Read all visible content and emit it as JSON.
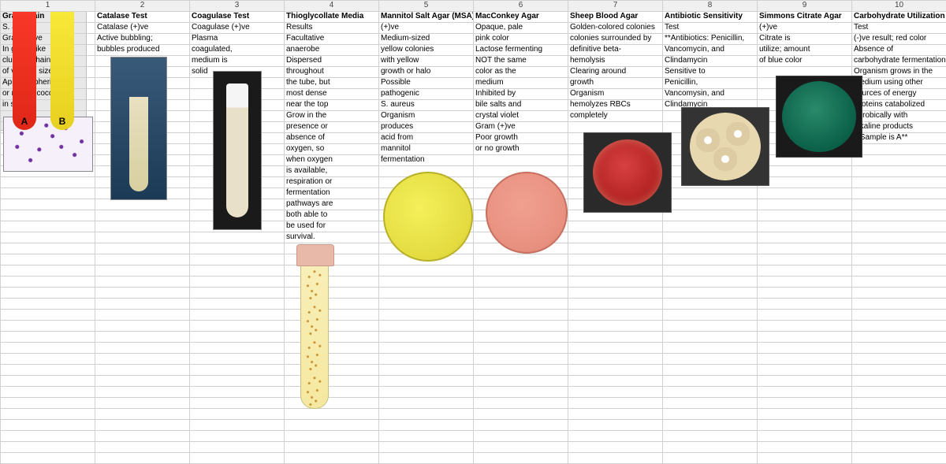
{
  "colNumbers": [
    "1",
    "2",
    "3",
    "4",
    "5",
    "6",
    "7",
    "8",
    "9",
    "10"
  ],
  "headers": [
    "Gram Stain",
    "Catalase Test",
    "Coagulase Test",
    "Thioglycollate Media",
    "Mannitol Salt Agar (MSA)",
    "MacConkey Agar",
    "Sheep Blood Agar",
    "Antibiotic Sensitivity",
    "Simmons Citrate Agar",
    "Carbohydrate Utilization"
  ],
  "cols": {
    "c1": [
      "S. aureus",
      "Gram (+)ve",
      "In grape-like",
      "clusters/chains",
      "of varying size",
      "Appear spherical",
      "or round (cocci)",
      "in shape"
    ],
    "c2": [
      "Catalase (+)ve",
      "Active bubbling;",
      "bubbles produced"
    ],
    "c3": [
      "Coagulase (+)ve",
      "Plasma",
      "coagulated,",
      "medium is",
      "solid"
    ],
    "c4": [
      "Results",
      "Facultative",
      "anaerobe",
      "Dispersed",
      "throughout",
      "the tube, but",
      "most dense",
      "near the top",
      "Grow in the",
      "presence or",
      "absence of",
      "oxygen, so",
      "when oxygen",
      "is available,",
      "respiration or",
      "fermentation",
      "pathways are",
      "both able to",
      "be used for",
      "survival."
    ],
    "c5": [
      "(+)ve",
      "Medium-sized",
      "yellow colonies",
      "with yellow",
      "growth or halo",
      "Possible",
      "pathogenic",
      "S. aureus",
      "Organism",
      "produces",
      "acid from",
      "mannitol",
      "fermentation"
    ],
    "c6": [
      "Opaque, pale",
      "pink color",
      "Lactose fermenting",
      "NOT the same",
      "color as the",
      "medium",
      "Inhibited by",
      "bile salts and",
      "crystal violet",
      "Gram (+)ve",
      "Poor growth",
      "or no growth"
    ],
    "c7": [
      "Golden-colored colonies",
      "colonies surrounded by",
      "definitive beta-",
      "hemolysis",
      "Clearing around",
      "growth",
      "Organism",
      "hemolyzes RBCs",
      "completely"
    ],
    "c8": [
      "Test",
      "**Antibiotics: Penicillin,",
      "Vancomycin, and",
      "Clindamycin",
      "Sensitive to",
      "Penicillin,",
      "Vancomysin, and",
      "Clindamycin"
    ],
    "c9": [
      "(+)ve",
      "Citrate is",
      "utilize; amount",
      "of blue color"
    ],
    "c10": [
      "Test",
      "(-)ve result; red color",
      "Absence of",
      "carbohydrate fermentation",
      "Organism grows in the",
      "medium using other",
      "sources of energy",
      "Proteins catabolized",
      "aerobically with",
      "alkaline products",
      "**Sample is A**"
    ]
  },
  "tubeLabels": {
    "A": "A",
    "B": "B"
  },
  "style": {
    "grid_border": "#d0d0d0",
    "header_bg": "#f0f0f0",
    "font_size": 10,
    "gram_dot": "#7030a0",
    "catalase_bg_top": "#3a5a7a",
    "catalase_bg_bot": "#1a3a55",
    "coag_bg": "#1a1a1a",
    "thio_cap": "#e8b8a8",
    "thio_liquid": "#f5e8a0",
    "thio_speck": "#c89030",
    "msa_yellow": "#e3db40",
    "mac_pink": "#e89080",
    "blood_red": "#b02020",
    "abx_agar": "#e8d8b0",
    "citrate_green": "#0a6048",
    "phenol_red": "#e02818",
    "phenol_yellow": "#e8d020"
  }
}
